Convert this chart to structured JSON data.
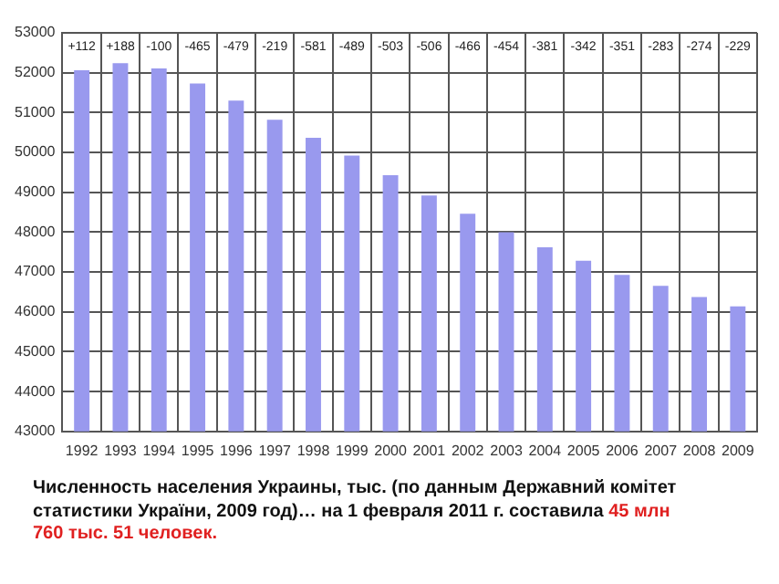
{
  "chart_data": {
    "type": "bar",
    "title": "Численность населения Украины, тыс. (по данным Державний комітет статистики України, 2009 год)… на 1 февраля 2011 г. составила",
    "subtitle": "45 млн 760 тыс. 51 человек.",
    "categories": [
      "1992",
      "1993",
      "1994",
      "1995",
      "1996",
      "1997",
      "1998",
      "1999",
      "2000",
      "2001",
      "2002",
      "2003",
      "2004",
      "2005",
      "2006",
      "2007",
      "2008",
      "2009"
    ],
    "values": [
      52060,
      52240,
      52110,
      51730,
      51300,
      50820,
      50370,
      49920,
      49430,
      48920,
      48460,
      48000,
      47620,
      47280,
      46930,
      46650,
      46370,
      46140
    ],
    "color": "#9999ee",
    "ylim": [
      43000,
      53000
    ],
    "yticks": [
      43000,
      44000,
      45000,
      46000,
      47000,
      48000,
      49000,
      50000,
      51000,
      52000,
      53000
    ],
    "grid": true,
    "annotations": [
      "+112",
      "+188",
      "-100",
      "-465",
      "-479",
      "-219",
      "-581",
      "-489",
      "-503",
      "-506",
      "-466",
      "-454",
      "-381",
      "-342",
      "-351",
      "-283",
      "-274",
      "-229"
    ]
  }
}
